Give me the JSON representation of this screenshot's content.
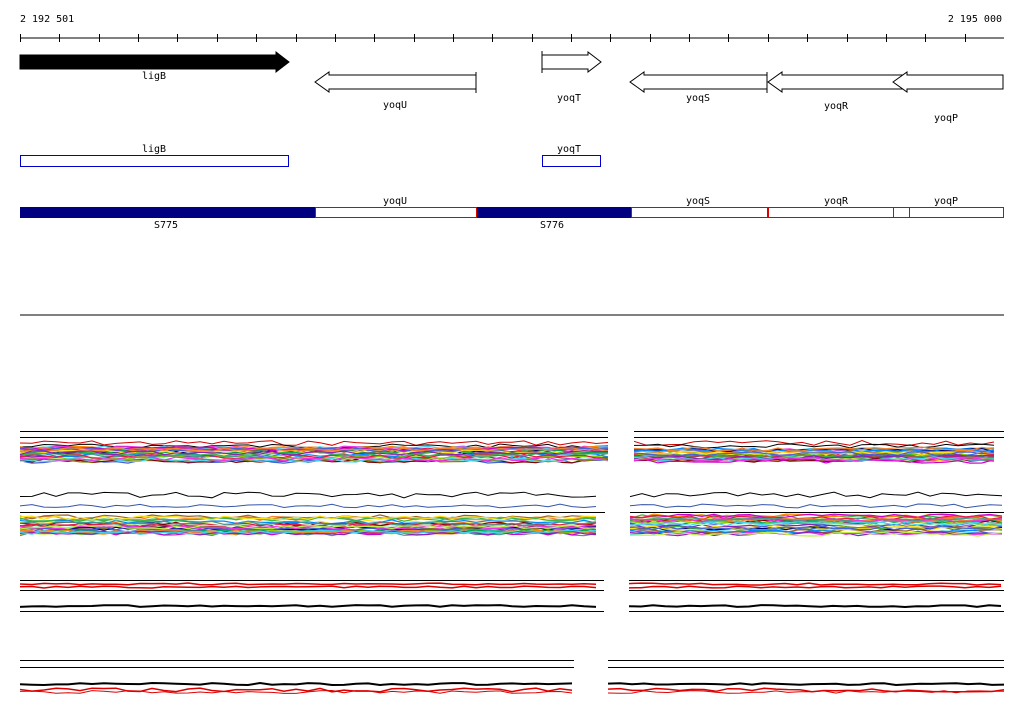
{
  "ruler": {
    "start_label": "2 192 501",
    "end_label": "2 195 000"
  },
  "genes": [
    {
      "name": "ligB",
      "strand": "+",
      "style": "filled"
    },
    {
      "name": "yoqU",
      "strand": "-",
      "style": "outline"
    },
    {
      "name": "yoqT",
      "strand": "+",
      "style": "outline"
    },
    {
      "name": "yoqS",
      "strand": "-",
      "style": "outline"
    },
    {
      "name": "yoqR",
      "strand": "-",
      "style": "outline"
    },
    {
      "name": "yoqP",
      "strand": "-",
      "style": "outline"
    }
  ],
  "features": [
    {
      "label": "ligB"
    },
    {
      "label": "yoqT"
    }
  ],
  "segments": [
    {
      "label": "yoqU"
    },
    {
      "label": "yoqS"
    },
    {
      "label": "yoqR"
    },
    {
      "label": "yoqP"
    },
    {
      "label": "S775"
    },
    {
      "label": "S776"
    }
  ],
  "colors": {
    "gene_fill": "#000000",
    "feature_outline": "#0000cc",
    "segment_filled": "#000080",
    "segment_outline": "#dd0000"
  }
}
